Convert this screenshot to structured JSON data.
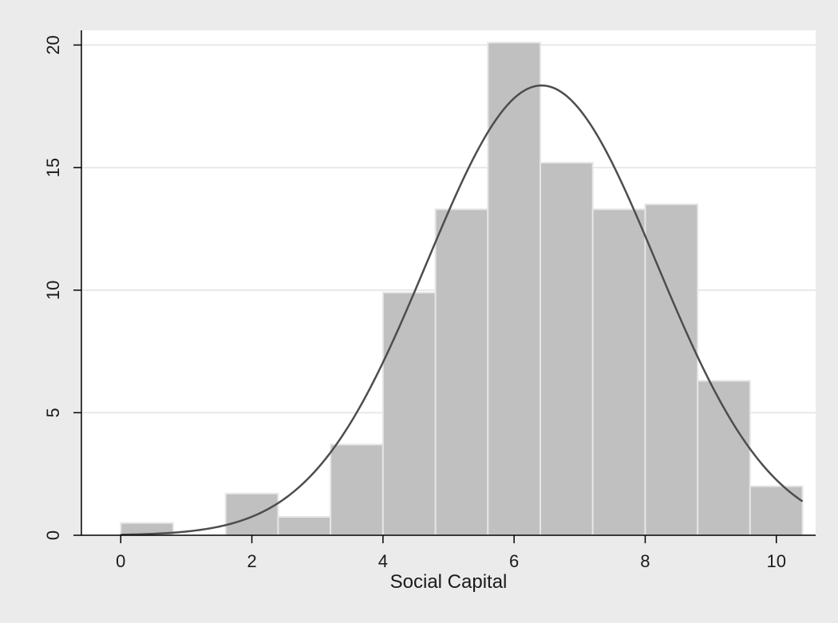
{
  "chart_data": {
    "type": "bar",
    "subtype": "histogram-with-normal-curve",
    "title": "",
    "xlabel": "Social Capital",
    "ylabel": "",
    "xlim": [
      -0.6,
      10.6
    ],
    "ylim": [
      0,
      20.6
    ],
    "xticks": [
      0,
      2,
      4,
      6,
      8,
      10
    ],
    "yticks": [
      0,
      5,
      10,
      15,
      20
    ],
    "grid": true,
    "legend": "none",
    "bin_width": 0.8,
    "bins": [
      {
        "x0": 0.0,
        "x1": 0.8,
        "value": 0.5
      },
      {
        "x0": 1.6,
        "x1": 2.4,
        "value": 1.7
      },
      {
        "x0": 2.4,
        "x1": 3.2,
        "value": 0.75
      },
      {
        "x0": 3.2,
        "x1": 4.0,
        "value": 3.7
      },
      {
        "x0": 4.0,
        "x1": 4.8,
        "value": 9.9
      },
      {
        "x0": 4.8,
        "x1": 5.6,
        "value": 13.3
      },
      {
        "x0": 5.6,
        "x1": 6.4,
        "value": 20.1
      },
      {
        "x0": 6.4,
        "x1": 7.2,
        "value": 15.2
      },
      {
        "x0": 7.2,
        "x1": 8.0,
        "value": 13.3
      },
      {
        "x0": 8.0,
        "x1": 8.8,
        "value": 13.5
      },
      {
        "x0": 8.8,
        "x1": 9.6,
        "value": 6.3
      },
      {
        "x0": 9.6,
        "x1": 10.4,
        "value": 2.0
      }
    ],
    "normal_curve": {
      "mean": 6.42,
      "sd": 1.75,
      "peak": 18.35,
      "x_range": [
        0,
        10.4
      ]
    },
    "colors": {
      "background": "#ebebeb",
      "plot_area": "#ffffff",
      "bar_fill": "#c0c0c0",
      "bar_edge": "#e6e6e6",
      "curve": "#4d4d4d",
      "grid": "#e8e8e8",
      "axis": "#000000"
    }
  }
}
